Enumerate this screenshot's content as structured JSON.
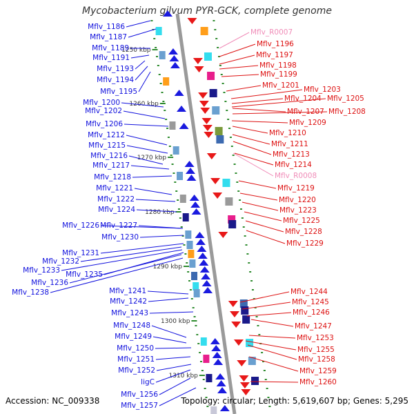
{
  "title": "Mycobacterium gilvum PYR-GCK, complete genome",
  "accession_label": "Accession: NC_009338",
  "summary_label": "Topology: circular; Length: 5,619,607 bp; Genes: 5,295",
  "colors": {
    "left_label": "#1010dd",
    "right_label": "#dd1010",
    "rna_label": "#f08cb8",
    "backbone": "#9a9a9a",
    "tick": "#2e8b2e"
  },
  "scale_ticks": [
    "1250 kbp",
    "1260 kbp",
    "1270 kbp",
    "1280 kbp",
    "1290 kbp",
    "1300 kbp",
    "1310 kbp"
  ],
  "left_genes": [
    "Mflv_1186",
    "Mflv_1187",
    "Mflv_1189",
    "Mflv_1191",
    "Mflv_1193",
    "Mflv_1194",
    "Mflv_1195",
    "Mflv_1200",
    "Mflv_1202",
    "Mflv_1206",
    "Mflv_1212",
    "Mflv_1215",
    "Mflv_1216",
    "Mflv_1217",
    "Mflv_1218",
    "Mflv_1221",
    "Mflv_1222",
    "Mflv_1224",
    "Mflv_1226",
    "Mflv_1227",
    "Mflv_1230",
    "Mflv_1231",
    "Mflv_1232",
    "Mflv_1233",
    "Mflv_1235",
    "Mflv_1236",
    "Mflv_1238",
    "Mflv_1241",
    "Mflv_1242",
    "Mflv_1243",
    "Mflv_1248",
    "Mflv_1249",
    "Mflv_1250",
    "Mflv_1251",
    "Mflv_1252",
    "ligC",
    "Mflv_1256",
    "Mflv_1257"
  ],
  "right_genes": [
    "Mflv_R0007",
    "Mflv_1196",
    "Mflv_1197",
    "Mflv_1198",
    "Mflv_1199",
    "Mflv_1201",
    "Mflv_1203",
    "Mflv_1204",
    "Mflv_1205",
    "Mflv_1207",
    "Mflv_1208",
    "Mflv_1209",
    "Mflv_1210",
    "Mflv_1211",
    "Mflv_1213",
    "Mflv_1214",
    "Mflv_R0008",
    "Mflv_1219",
    "Mflv_1220",
    "Mflv_1223",
    "Mflv_1225",
    "Mflv_1228",
    "Mflv_1229",
    "Mflv_1244",
    "Mflv_1245",
    "Mflv_1246",
    "Mflv_1247",
    "Mflv_1253",
    "Mflv_1255",
    "Mflv_1258",
    "Mflv_1259",
    "Mflv_1260"
  ],
  "rna_genes": [
    "Mflv_R0007",
    "Mflv_R0008"
  ]
}
